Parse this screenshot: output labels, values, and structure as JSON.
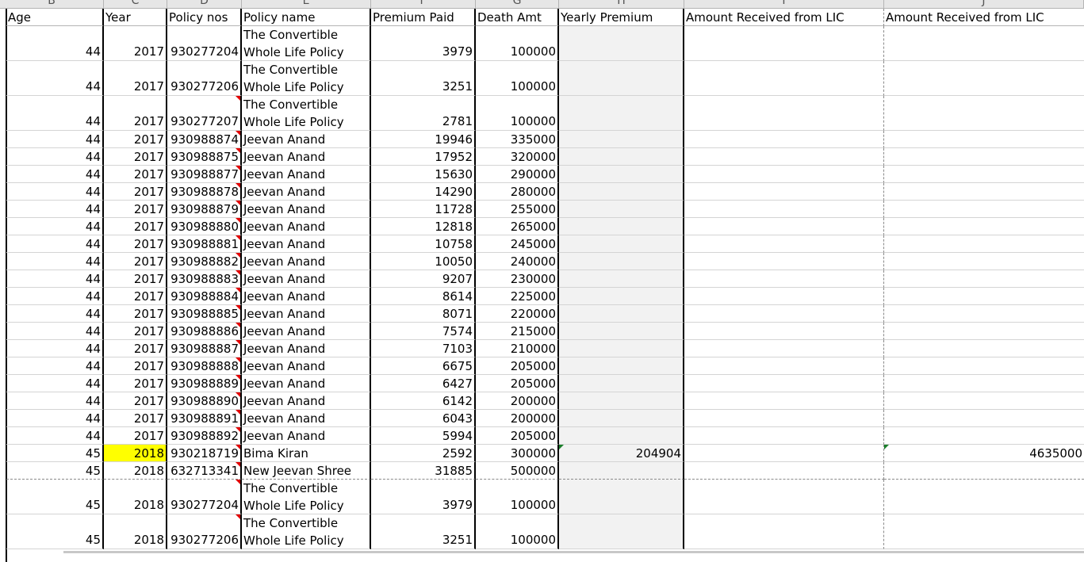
{
  "sheet": {
    "column_letters": [
      "B",
      "C",
      "D",
      "E",
      "F",
      "G",
      "H",
      "I",
      "J"
    ],
    "headers": {
      "age": "Age",
      "year": "Year",
      "policy_nos": "Policy nos",
      "policy_name": "Policy name",
      "premium_paid": "Premium Paid",
      "death_amt": "Death Amt",
      "yearly_premium": "Yearly Premium",
      "amount_received_1": "Amount Received from LIC",
      "amount_received_2": "Amount Received from LIC"
    },
    "rows": [
      {
        "age": "44",
        "year": "2017",
        "policy": "930277204",
        "name": "The Convertible Whole Life Policy",
        "premium": "3979",
        "death": "100000",
        "yearly": "",
        "recv1": "",
        "recv2": ""
      },
      {
        "age": "44",
        "year": "2017",
        "policy": "930277206",
        "name": "The Convertible Whole Life Policy",
        "premium": "3251",
        "death": "100000",
        "yearly": "",
        "recv1": "",
        "recv2": ""
      },
      {
        "age": "44",
        "year": "2017",
        "policy": "930277207",
        "name": "The Convertible Whole Life Policy",
        "premium": "2781",
        "death": "100000",
        "yearly": "",
        "recv1": "",
        "recv2": ""
      },
      {
        "age": "44",
        "year": "2017",
        "policy": "930988874",
        "name": "Jeevan Anand",
        "premium": "19946",
        "death": "335000",
        "yearly": "",
        "recv1": "",
        "recv2": ""
      },
      {
        "age": "44",
        "year": "2017",
        "policy": "930988875",
        "name": "Jeevan Anand",
        "premium": "17952",
        "death": "320000",
        "yearly": "",
        "recv1": "",
        "recv2": ""
      },
      {
        "age": "44",
        "year": "2017",
        "policy": "930988877",
        "name": "Jeevan Anand",
        "premium": "15630",
        "death": "290000",
        "yearly": "",
        "recv1": "",
        "recv2": ""
      },
      {
        "age": "44",
        "year": "2017",
        "policy": "930988878",
        "name": "Jeevan Anand",
        "premium": "14290",
        "death": "280000",
        "yearly": "",
        "recv1": "",
        "recv2": ""
      },
      {
        "age": "44",
        "year": "2017",
        "policy": "930988879",
        "name": "Jeevan Anand",
        "premium": "11728",
        "death": "255000",
        "yearly": "",
        "recv1": "",
        "recv2": ""
      },
      {
        "age": "44",
        "year": "2017",
        "policy": "930988880",
        "name": "Jeevan Anand",
        "premium": "12818",
        "death": "265000",
        "yearly": "",
        "recv1": "",
        "recv2": ""
      },
      {
        "age": "44",
        "year": "2017",
        "policy": "930988881",
        "name": "Jeevan Anand",
        "premium": "10758",
        "death": "245000",
        "yearly": "",
        "recv1": "",
        "recv2": ""
      },
      {
        "age": "44",
        "year": "2017",
        "policy": "930988882",
        "name": "Jeevan Anand",
        "premium": "10050",
        "death": "240000",
        "yearly": "",
        "recv1": "",
        "recv2": ""
      },
      {
        "age": "44",
        "year": "2017",
        "policy": "930988883",
        "name": "Jeevan Anand",
        "premium": "9207",
        "death": "230000",
        "yearly": "",
        "recv1": "",
        "recv2": ""
      },
      {
        "age": "44",
        "year": "2017",
        "policy": "930988884",
        "name": "Jeevan Anand",
        "premium": "8614",
        "death": "225000",
        "yearly": "",
        "recv1": "",
        "recv2": ""
      },
      {
        "age": "44",
        "year": "2017",
        "policy": "930988885",
        "name": "Jeevan Anand",
        "premium": "8071",
        "death": "220000",
        "yearly": "",
        "recv1": "",
        "recv2": ""
      },
      {
        "age": "44",
        "year": "2017",
        "policy": "930988886",
        "name": "Jeevan Anand",
        "premium": "7574",
        "death": "215000",
        "yearly": "",
        "recv1": "",
        "recv2": ""
      },
      {
        "age": "44",
        "year": "2017",
        "policy": "930988887",
        "name": "Jeevan Anand",
        "premium": "7103",
        "death": "210000",
        "yearly": "",
        "recv1": "",
        "recv2": ""
      },
      {
        "age": "44",
        "year": "2017",
        "policy": "930988888",
        "name": "Jeevan Anand",
        "premium": "6675",
        "death": "205000",
        "yearly": "",
        "recv1": "",
        "recv2": ""
      },
      {
        "age": "44",
        "year": "2017",
        "policy": "930988889",
        "name": "Jeevan Anand",
        "premium": "6427",
        "death": "205000",
        "yearly": "",
        "recv1": "",
        "recv2": ""
      },
      {
        "age": "44",
        "year": "2017",
        "policy": "930988890",
        "name": "Jeevan Anand",
        "premium": "6142",
        "death": "200000",
        "yearly": "",
        "recv1": "",
        "recv2": ""
      },
      {
        "age": "44",
        "year": "2017",
        "policy": "930988891",
        "name": "Jeevan Anand",
        "premium": "6043",
        "death": "200000",
        "yearly": "",
        "recv1": "",
        "recv2": ""
      },
      {
        "age": "44",
        "year": "2017",
        "policy": "930988892",
        "name": "Jeevan Anand",
        "premium": "5994",
        "death": "205000",
        "yearly": "",
        "recv1": "",
        "recv2": ""
      },
      {
        "age": "45",
        "year": "2018",
        "policy": "930218719",
        "name": "Bima Kiran",
        "premium": "2592",
        "death": "300000",
        "yearly": "204904",
        "recv1": "",
        "recv2": "4635000"
      },
      {
        "age": "45",
        "year": "2018",
        "policy": "632713341",
        "name": "New Jeevan Shree",
        "premium": "31885",
        "death": "500000",
        "yearly": "",
        "recv1": "",
        "recv2": ""
      },
      {
        "age": "45",
        "year": "2018",
        "policy": "930277204",
        "name": "The Convertible Whole Life Policy",
        "premium": "3979",
        "death": "100000",
        "yearly": "",
        "recv1": "",
        "recv2": ""
      },
      {
        "age": "45",
        "year": "2018",
        "policy": "930277206",
        "name": "The Convertible Whole Life Policy",
        "premium": "3251",
        "death": "100000",
        "yearly": "",
        "recv1": "",
        "recv2": ""
      }
    ],
    "highlight_color": "#ffff00",
    "yearly_premium_fill": "#f2f2f2",
    "comment_marker_color": "#e00000",
    "error_marker_color": "#1a7f2a"
  }
}
